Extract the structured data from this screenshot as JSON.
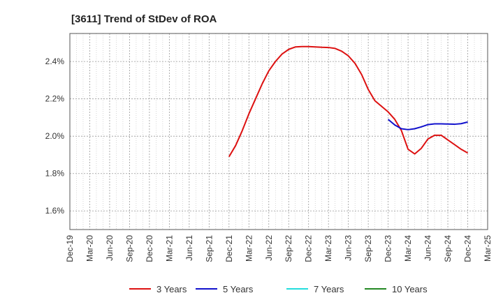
{
  "chart_data": {
    "type": "line",
    "title": "[3611]  Trend of StDev of ROA",
    "xlabel": "",
    "ylabel": "",
    "x_ticks": [
      "Dec-19",
      "Mar-20",
      "Jun-20",
      "Sep-20",
      "Dec-20",
      "Mar-21",
      "Jun-21",
      "Sep-21",
      "Dec-21",
      "Mar-22",
      "Jun-22",
      "Sep-22",
      "Dec-22",
      "Mar-23",
      "Jun-23",
      "Sep-23",
      "Dec-23",
      "Mar-24",
      "Jun-24",
      "Sep-24",
      "Dec-24",
      "Mar-25"
    ],
    "y_ticks": [
      "1.6%",
      "1.8%",
      "2.0%",
      "2.2%",
      "2.4%"
    ],
    "ylim": [
      1.5,
      2.55
    ],
    "grid": true,
    "legend_position": "bottom",
    "series": [
      {
        "name": "3 Years",
        "color": "#dd1111",
        "x": [
          "Dec-21",
          "Jan-22",
          "Feb-22",
          "Mar-22",
          "Apr-22",
          "May-22",
          "Jun-22",
          "Jul-22",
          "Aug-22",
          "Sep-22",
          "Oct-22",
          "Nov-22",
          "Dec-22",
          "Jan-23",
          "Feb-23",
          "Mar-23",
          "Apr-23",
          "May-23",
          "Jun-23",
          "Jul-23",
          "Aug-23",
          "Sep-23",
          "Oct-23",
          "Nov-23",
          "Dec-23",
          "Jan-24",
          "Feb-24",
          "Mar-24",
          "Apr-24",
          "May-24",
          "Jun-24",
          "Jul-24",
          "Aug-24",
          "Sep-24",
          "Oct-24",
          "Nov-24",
          "Dec-24"
        ],
        "values": [
          1.89,
          1.95,
          2.03,
          2.12,
          2.2,
          2.28,
          2.35,
          2.4,
          2.44,
          2.465,
          2.478,
          2.48,
          2.48,
          2.478,
          2.476,
          2.475,
          2.47,
          2.455,
          2.43,
          2.39,
          2.33,
          2.25,
          2.19,
          2.16,
          2.13,
          2.09,
          2.03,
          1.93,
          1.905,
          1.935,
          1.985,
          2.005,
          2.005,
          1.98,
          1.955,
          1.93,
          1.91
        ]
      },
      {
        "name": "5 Years",
        "color": "#1111cc",
        "x": [
          "Dec-23",
          "Jan-24",
          "Feb-24",
          "Mar-24",
          "Apr-24",
          "May-24",
          "Jun-24",
          "Jul-24",
          "Aug-24",
          "Sep-24",
          "Oct-24",
          "Nov-24",
          "Dec-24"
        ],
        "values": [
          2.09,
          2.06,
          2.04,
          2.035,
          2.04,
          2.05,
          2.062,
          2.066,
          2.066,
          2.065,
          2.064,
          2.067,
          2.076
        ]
      },
      {
        "name": "7 Years",
        "color": "#22dddd",
        "x": [],
        "values": []
      },
      {
        "name": "10 Years",
        "color": "#228822",
        "x": [],
        "values": []
      }
    ]
  }
}
